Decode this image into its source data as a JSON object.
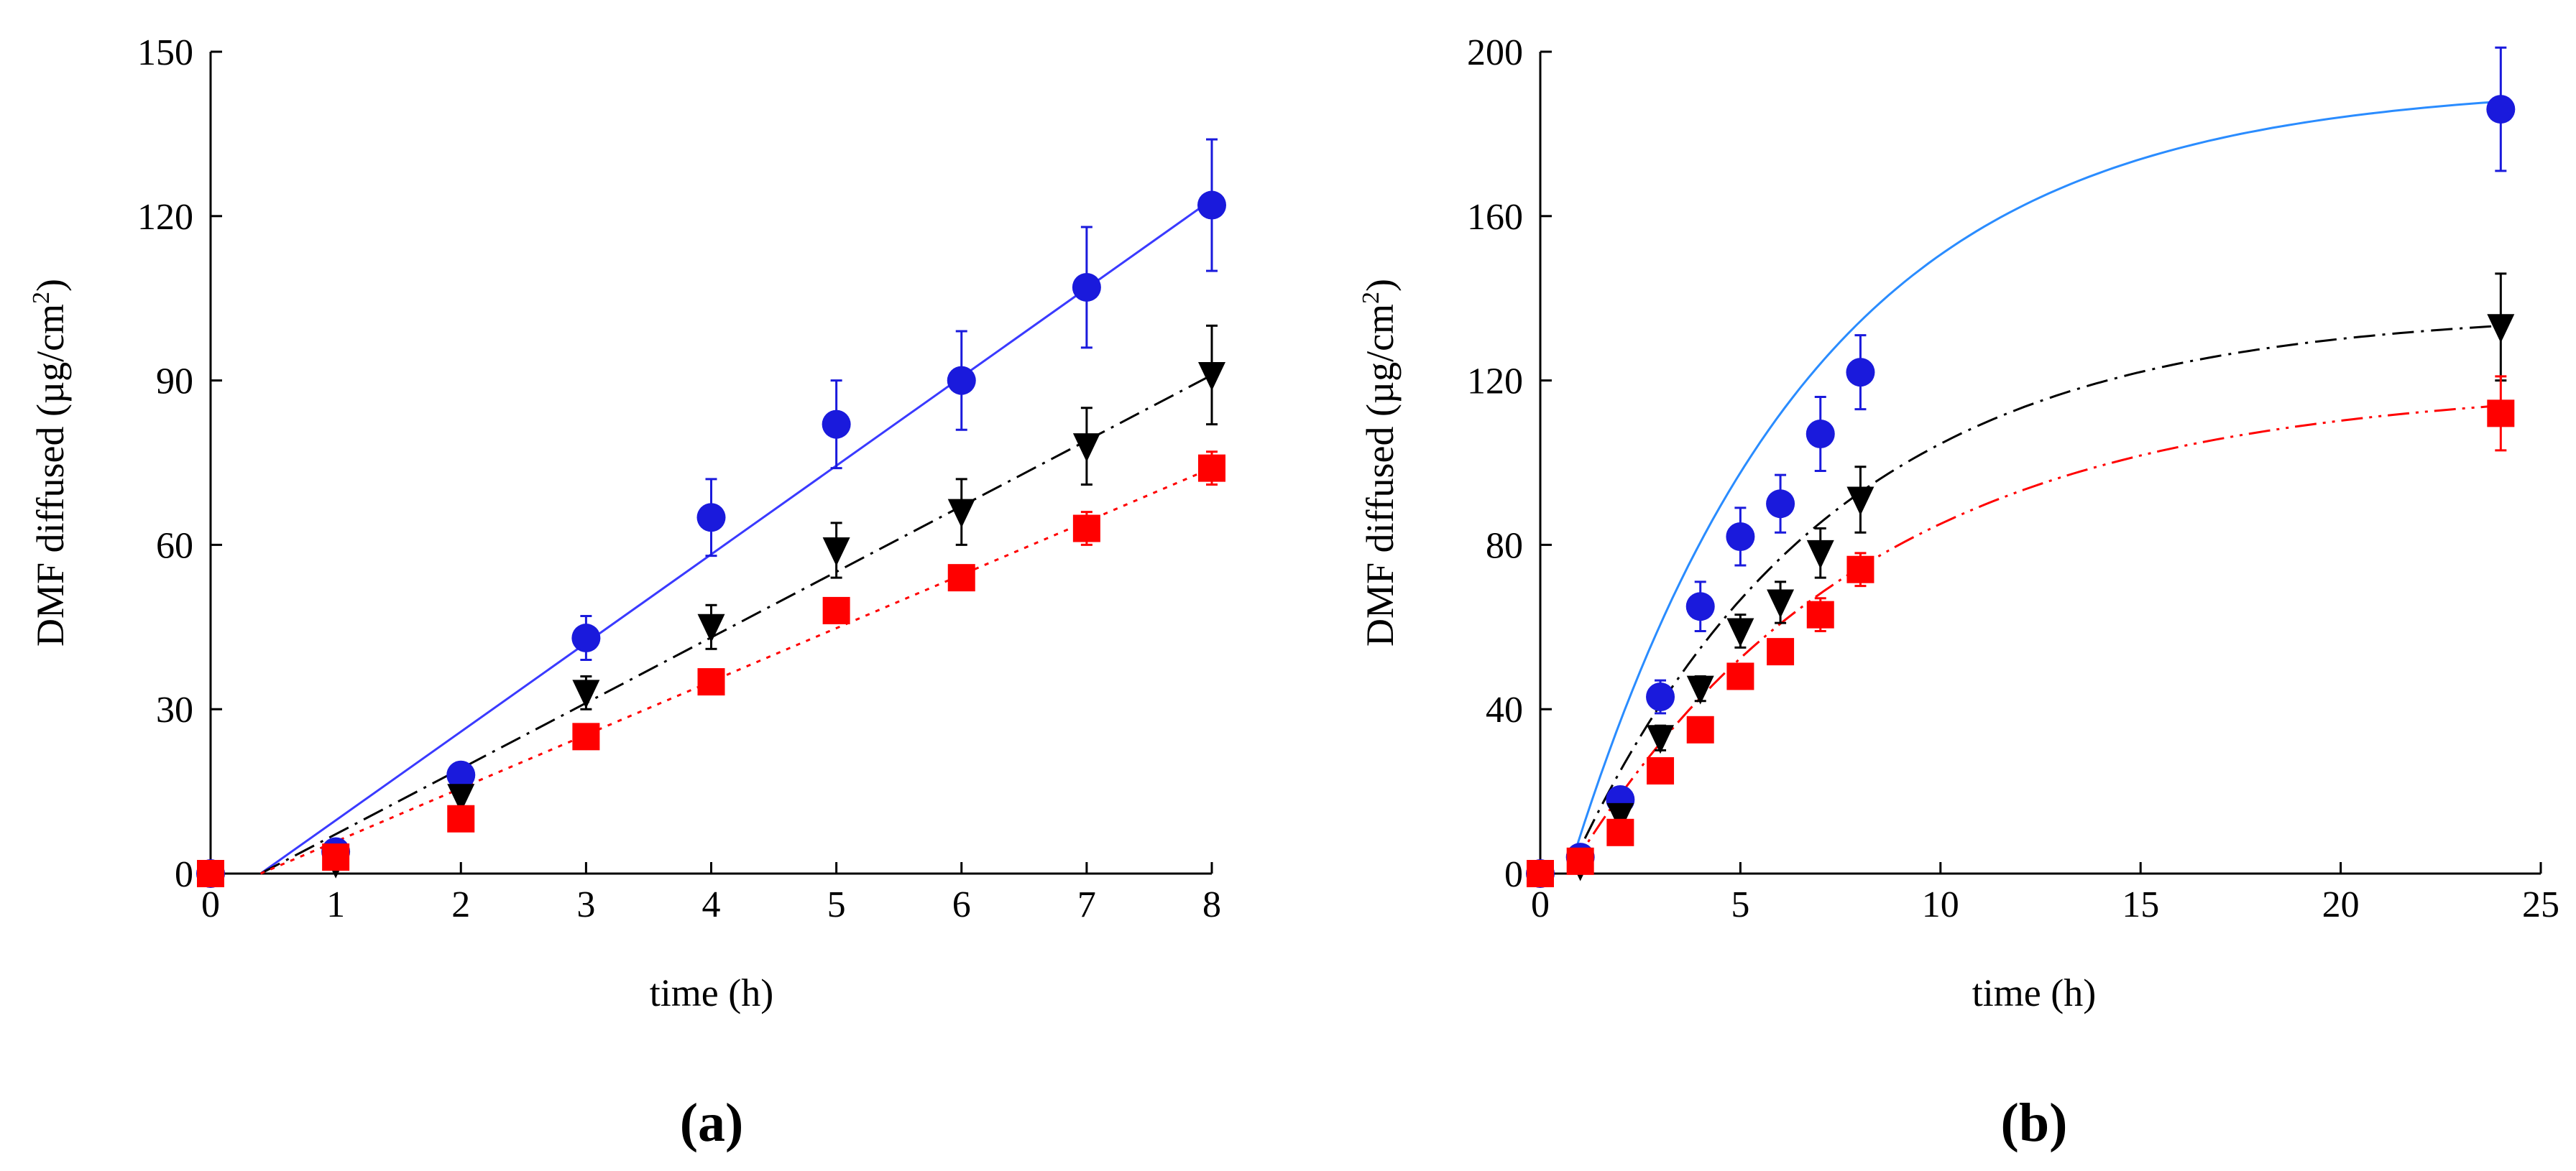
{
  "chart_data": [
    {
      "type": "scatter",
      "panel_label": "(a)",
      "xlabel": "time (h)",
      "ylabel": "DMF diffused (µg/cm2)",
      "ylabel_main": "DMF diffused (µg/cm",
      "ylabel_sup": "2",
      "ylabel_close": ")",
      "xlim": [
        0,
        8
      ],
      "ylim": [
        0,
        150
      ],
      "xticks": [
        "0",
        "1",
        "2",
        "3",
        "4",
        "5",
        "6",
        "7",
        "8"
      ],
      "yticks": [
        "0",
        "30",
        "60",
        "90",
        "120",
        "150"
      ],
      "series": [
        {
          "name": "circles",
          "marker": "circle",
          "color": "#1a1adc",
          "line_color": "#3a3aff",
          "line_style": "solid",
          "x": [
            0,
            1,
            2,
            3,
            4,
            5,
            6,
            7,
            8
          ],
          "y": [
            0,
            4,
            18,
            43,
            65,
            82,
            90,
            107,
            122
          ],
          "err": [
            0,
            2,
            2,
            4,
            7,
            8,
            9,
            11,
            12
          ],
          "fit": {
            "x": [
              0.4,
              8
            ],
            "y": [
              0,
              123
            ]
          }
        },
        {
          "name": "triangles",
          "marker": "triangle-down",
          "color": "#000000",
          "line_color": "#000000",
          "line_style": "dash-dot",
          "x": [
            1,
            2,
            3,
            4,
            5,
            6,
            7,
            8
          ],
          "y": [
            2,
            14,
            33,
            45,
            59,
            66,
            78,
            91
          ],
          "err": [
            1,
            2,
            3,
            4,
            5,
            6,
            7,
            9
          ],
          "fit": {
            "x": [
              0.4,
              8
            ],
            "y": [
              0,
              91
            ]
          }
        },
        {
          "name": "squares",
          "marker": "square",
          "color": "#ff0000",
          "line_color": "#ff0000",
          "line_style": "dotted",
          "x": [
            0,
            1,
            2,
            3,
            4,
            5,
            6,
            7,
            8
          ],
          "y": [
            0,
            3,
            10,
            25,
            35,
            48,
            54,
            63,
            74
          ],
          "err": [
            0,
            1,
            1,
            2,
            2,
            2,
            2,
            3,
            3
          ],
          "fit": {
            "x": [
              0.4,
              8
            ],
            "y": [
              0,
              74
            ]
          }
        }
      ]
    },
    {
      "type": "scatter",
      "panel_label": "(b)",
      "xlabel": "time (h)",
      "ylabel": "DMF diffused (µg/cm2)",
      "ylabel_main": "DMF diffused (µg/cm",
      "ylabel_sup": "2",
      "ylabel_close": ")",
      "xlim": [
        0,
        25
      ],
      "ylim": [
        0,
        200
      ],
      "xticks": [
        "0",
        "5",
        "10",
        "15",
        "20",
        "25"
      ],
      "yticks": [
        "0",
        "40",
        "80",
        "120",
        "160",
        "200"
      ],
      "series": [
        {
          "name": "circles",
          "marker": "circle",
          "color": "#1a1adc",
          "line_color": "#2a8cff",
          "line_style": "solid",
          "x": [
            0,
            1,
            2,
            3,
            4,
            5,
            6,
            7,
            8,
            24
          ],
          "y": [
            0,
            4,
            18,
            43,
            65,
            82,
            90,
            107,
            122,
            186
          ],
          "err": [
            0,
            2,
            2,
            4,
            6,
            7,
            7,
            9,
            9,
            15
          ],
          "fit": {
            "plateau": 192,
            "k": 0.165,
            "lag": 0.7
          }
        },
        {
          "name": "triangles",
          "marker": "triangle-down",
          "color": "#000000",
          "line_color": "#000000",
          "line_style": "dash-dot",
          "x": [
            1,
            2,
            3,
            4,
            5,
            6,
            7,
            8,
            24
          ],
          "y": [
            2,
            14,
            33,
            45,
            59,
            66,
            78,
            91,
            133
          ],
          "err": [
            1,
            2,
            3,
            3,
            4,
            5,
            6,
            8,
            13
          ],
          "fit": {
            "plateau": 137,
            "k": 0.155,
            "lag": 0.7
          }
        },
        {
          "name": "squares",
          "marker": "square",
          "color": "#ff0000",
          "line_color": "#ff0000",
          "line_style": "dash-dot-dot",
          "x": [
            0,
            1,
            2,
            3,
            4,
            5,
            6,
            7,
            8,
            24
          ],
          "y": [
            0,
            3,
            10,
            25,
            35,
            48,
            54,
            63,
            74,
            112
          ],
          "err": [
            0,
            1,
            1,
            2,
            2,
            3,
            3,
            4,
            4,
            9
          ],
          "fit": {
            "plateau": 119,
            "k": 0.135,
            "lag": 0.7
          }
        }
      ]
    }
  ]
}
